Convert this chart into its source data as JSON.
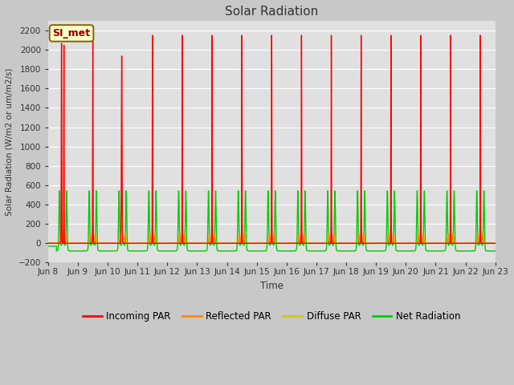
{
  "title": "Solar Radiation",
  "ylabel": "Solar Radiation (W/m2 or um/m2/s)",
  "xlabel": "Time",
  "ylim": [
    -200,
    2300
  ],
  "yticks": [
    -200,
    0,
    200,
    400,
    600,
    800,
    1000,
    1200,
    1400,
    1600,
    1800,
    2000,
    2200
  ],
  "fig_bg_color": "#c8c8c8",
  "plot_bg_color": "#e0e0e0",
  "grid_color": "#ffffff",
  "legend_label": "SI_met",
  "series": {
    "incoming_par": {
      "color": "#ff0000",
      "label": "Incoming PAR"
    },
    "reflected_par": {
      "color": "#ff8800",
      "label": "Reflected PAR"
    },
    "diffuse_par": {
      "color": "#cccc00",
      "label": "Diffuse PAR"
    },
    "net_radiation": {
      "color": "#00cc00",
      "label": "Net Radiation"
    }
  },
  "x_tick_labels": [
    "Jun 8",
    "Jun 9",
    "Jun 10",
    "Jun 11",
    "Jun 12",
    "Jun 13",
    "Jun 14",
    "Jun 15",
    "Jun 16",
    "Jun 17",
    "Jun 18",
    "Jun 19",
    "Jun 20",
    "Jun 21",
    "Jun 22",
    "Jun 23"
  ],
  "n_days": 15,
  "points_per_day": 288
}
